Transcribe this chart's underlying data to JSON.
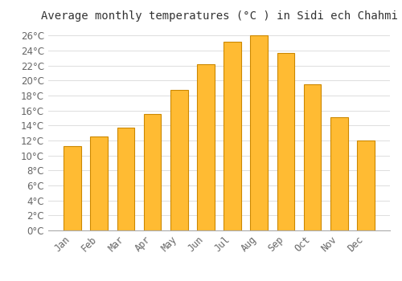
{
  "title": "Average monthly temperatures (°C ) in Sidi ech Chahmi",
  "months": [
    "Jan",
    "Feb",
    "Mar",
    "Apr",
    "May",
    "Jun",
    "Jul",
    "Aug",
    "Sep",
    "Oct",
    "Nov",
    "Dec"
  ],
  "values": [
    11.3,
    12.5,
    13.7,
    15.5,
    18.7,
    22.2,
    25.2,
    26.0,
    23.7,
    19.5,
    15.1,
    12.0
  ],
  "bar_color": "#FFBB33",
  "bar_edge_color": "#CC8800",
  "background_color": "#FFFFFF",
  "grid_color": "#DDDDDD",
  "text_color": "#666666",
  "ylim": [
    0,
    27
  ],
  "ytick_max": 26,
  "ytick_step": 2,
  "title_fontsize": 10,
  "tick_fontsize": 8.5
}
